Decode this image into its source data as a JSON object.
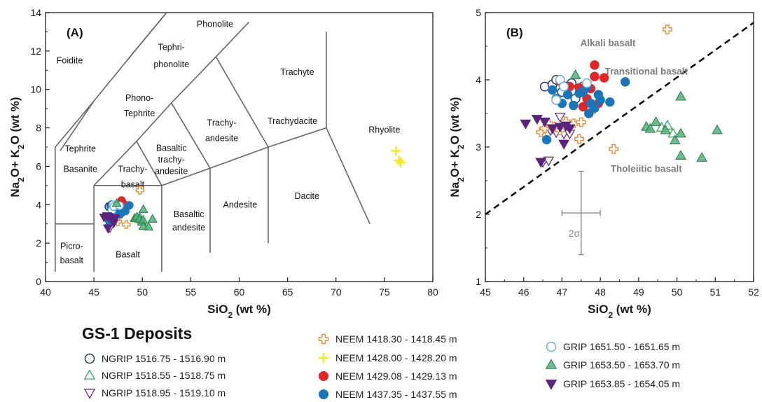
{
  "chart_data": [
    {
      "panel_label": "(A)",
      "type": "scatter",
      "xlabel": "SiO₂ (wt %)",
      "ylabel": "Na₂O+ K₂O (wt %)",
      "xlim": [
        40,
        80
      ],
      "ylim": [
        0,
        14
      ],
      "xticks": [
        40,
        45,
        50,
        55,
        60,
        65,
        70,
        75,
        80
      ],
      "yticks": [
        0,
        2,
        4,
        6,
        8,
        10,
        12,
        14
      ],
      "field_labels": [
        {
          "text": "Foidite",
          "x": 42.5,
          "y": 11.5
        },
        {
          "text": "Phonolite",
          "x": 57.5,
          "y": 13.4
        },
        {
          "text": "Tephri-",
          "x": 53.0,
          "y": 12.2
        },
        {
          "text": "phonolite",
          "x": 53.0,
          "y": 11.3
        },
        {
          "text": "Trachyte",
          "x": 66.0,
          "y": 10.9
        },
        {
          "text": "Phono-",
          "x": 49.7,
          "y": 9.55
        },
        {
          "text": "Tephrite",
          "x": 49.7,
          "y": 8.75
        },
        {
          "text": "Trachy-",
          "x": 58.2,
          "y": 8.25
        },
        {
          "text": "andesite",
          "x": 58.2,
          "y": 7.45
        },
        {
          "text": "Trachydacite",
          "x": 65.5,
          "y": 8.35
        },
        {
          "text": "Rhyolite",
          "x": 75.0,
          "y": 7.9
        },
        {
          "text": "Tephrite",
          "x": 43.6,
          "y": 6.9
        },
        {
          "text": "Basanite",
          "x": 43.6,
          "y": 5.85
        },
        {
          "text": "Basaltic",
          "x": 53.0,
          "y": 6.95
        },
        {
          "text": "trachy-",
          "x": 53.0,
          "y": 6.35
        },
        {
          "text": "andesite",
          "x": 53.0,
          "y": 5.75
        },
        {
          "text": "Trachy-",
          "x": 49.0,
          "y": 5.85
        },
        {
          "text": "basalt",
          "x": 49.0,
          "y": 5.05
        },
        {
          "text": "Andesite",
          "x": 60.1,
          "y": 4.0
        },
        {
          "text": "Dacite",
          "x": 67.0,
          "y": 4.45
        },
        {
          "text": "Basaltic",
          "x": 54.8,
          "y": 3.5
        },
        {
          "text": "andesite",
          "x": 54.8,
          "y": 2.8
        },
        {
          "text": "Picro-",
          "x": 42.7,
          "y": 1.85
        },
        {
          "text": "basalt",
          "x": 42.7,
          "y": 1.1
        },
        {
          "text": "Basalt",
          "x": 48.5,
          "y": 1.4
        }
      ],
      "tas_boundaries": [
        [
          [
            41,
            0.5
          ],
          [
            41,
            7
          ],
          [
            45,
            9.4
          ],
          [
            48.4,
            11.5
          ],
          [
            52.5,
            14
          ]
        ],
        [
          [
            41,
            3
          ],
          [
            45,
            3
          ]
        ],
        [
          [
            45,
            0.5
          ],
          [
            45,
            5
          ],
          [
            49.4,
            7.3
          ],
          [
            53,
            9.3
          ],
          [
            57.6,
            11.7
          ],
          [
            61,
            13.5
          ]
        ],
        [
          [
            45,
            5
          ],
          [
            52,
            5
          ],
          [
            52,
            0.5
          ]
        ],
        [
          [
            52,
            5
          ],
          [
            57,
            5.9
          ],
          [
            57,
            1.5
          ]
        ],
        [
          [
            57,
            5.9
          ],
          [
            63,
            7
          ],
          [
            63,
            2
          ]
        ],
        [
          [
            63,
            7
          ],
          [
            69,
            8
          ],
          [
            69,
            13
          ]
        ],
        [
          [
            69,
            8
          ],
          [
            73.5,
            3
          ]
        ],
        [
          [
            41.5,
            6.8
          ],
          [
            45,
            9.4
          ]
        ],
        [
          [
            49.4,
            7.3
          ],
          [
            52,
            5
          ]
        ],
        [
          [
            53,
            9.3
          ],
          [
            57,
            5.9
          ]
        ],
        [
          [
            57.6,
            11.7
          ],
          [
            63,
            7
          ]
        ],
        [
          [
            52.5,
            14
          ],
          [
            48.4,
            11.5
          ]
        ]
      ]
    },
    {
      "panel_label": "(B)",
      "type": "scatter",
      "xlabel": "SiO₂ (wt %)",
      "ylabel": "Na₂O+ K₂O (wt %)",
      "xlim": [
        45,
        52
      ],
      "ylim": [
        1,
        5
      ],
      "xticks": [
        45,
        46,
        47,
        48,
        49,
        50,
        51,
        52
      ],
      "yticks": [
        1,
        2,
        3,
        4,
        5
      ],
      "field_labels": [
        {
          "text": "Alkali basalt",
          "x": 48.2,
          "y": 4.55
        },
        {
          "text": "Transitional basalt",
          "x": 49.2,
          "y": 4.13
        },
        {
          "text": "Tholeiitic basalt",
          "x": 49.2,
          "y": 2.68
        }
      ],
      "divider": {
        "x": [
          45,
          52
        ],
        "y": [
          2.0,
          4.85
        ],
        "style": "dashed"
      },
      "error_bar": {
        "label": "2σ",
        "x": 47.5,
        "y": 2.02,
        "x_err": 0.5,
        "y_err": 0.62
      }
    }
  ],
  "series": [
    {
      "name": "NGRIP 1516.75 - 1516.90 m",
      "marker": "circle-open",
      "color": "#26336f",
      "points": [
        [
          46.55,
          3.9
        ],
        [
          46.75,
          3.93
        ],
        [
          46.85,
          4.0
        ],
        [
          47.1,
          3.9
        ],
        [
          47.25,
          3.95
        ],
        [
          47.0,
          3.82
        ],
        [
          47.55,
          3.9
        ],
        [
          47.35,
          3.72
        ]
      ]
    },
    {
      "name": "NGRIP 1518.55 - 1518.75 m",
      "marker": "triangle-open",
      "color": "#24a350",
      "points": [
        [
          49.6,
          3.29
        ],
        [
          49.75,
          3.32
        ],
        [
          49.9,
          3.2
        ]
      ]
    },
    {
      "name": "NGRIP 1518.95 - 1519.10 m",
      "marker": "triangle-down-open",
      "color": "#6b2b8c",
      "points": [
        [
          46.5,
          2.78
        ],
        [
          46.65,
          2.8
        ],
        [
          46.7,
          3.25
        ],
        [
          46.85,
          3.22
        ],
        [
          47.05,
          3.2
        ],
        [
          46.95,
          3.45
        ],
        [
          47.2,
          3.2
        ]
      ]
    },
    {
      "name": "NEEM 1418.30 - 1418.45 m",
      "marker": "plus-open",
      "color": "#ee8a2a",
      "points": [
        [
          49.75,
          4.75
        ],
        [
          48.35,
          2.97
        ],
        [
          47.45,
          3.12
        ],
        [
          46.45,
          3.22
        ],
        [
          46.55,
          3.28
        ],
        [
          46.65,
          3.35
        ],
        [
          46.8,
          3.3
        ],
        [
          46.95,
          3.25
        ],
        [
          47.1,
          3.38
        ],
        [
          47.3,
          3.35
        ],
        [
          47.5,
          3.37
        ],
        [
          47.75,
          3.52
        ]
      ]
    },
    {
      "name": "NEEM 1428.00 - 1428.20 m",
      "marker": "plus",
      "color": "#f3e81a",
      "points": [
        [
          76.2,
          6.8
        ],
        [
          76.5,
          6.3
        ],
        [
          76.7,
          6.2
        ]
      ]
    },
    {
      "name": "NEEM 1429.08 - 1429.13 m",
      "marker": "circle-filled",
      "color": "#e42526",
      "points": [
        [
          46.95,
          3.98
        ],
        [
          47.2,
          3.9
        ],
        [
          47.45,
          3.88
        ],
        [
          47.55,
          3.6
        ],
        [
          47.65,
          3.72
        ],
        [
          47.75,
          3.87
        ],
        [
          47.85,
          4.05
        ],
        [
          47.85,
          4.22
        ],
        [
          47.95,
          3.65
        ],
        [
          48.1,
          4.03
        ]
      ]
    },
    {
      "name": "NEEM 1437.35 - 1437.55 m",
      "marker": "circle-filled",
      "color": "#1a76bb",
      "points": [
        [
          46.6,
          3.11
        ],
        [
          46.75,
          3.85
        ],
        [
          46.85,
          3.72
        ],
        [
          47.0,
          3.65
        ],
        [
          47.15,
          3.78
        ],
        [
          47.3,
          3.62
        ],
        [
          47.45,
          3.8
        ],
        [
          47.55,
          3.82
        ],
        [
          47.65,
          3.9
        ],
        [
          47.7,
          3.5
        ],
        [
          47.75,
          3.65
        ],
        [
          47.85,
          3.58
        ],
        [
          47.95,
          3.78
        ],
        [
          48.0,
          3.7
        ],
        [
          48.25,
          3.67
        ],
        [
          48.65,
          3.97
        ]
      ]
    },
    {
      "name": "GRIP 1651.50 - 1651.65 m",
      "marker": "circle-open",
      "color": "#62b1e2",
      "points": [
        [
          46.85,
          3.7
        ],
        [
          46.95,
          4.0
        ],
        [
          47.05,
          3.9
        ],
        [
          47.65,
          3.95
        ]
      ]
    },
    {
      "name": "GRIP 1653.50 - 1653.70 m",
      "marker": "triangle-filled",
      "color": "#56b17a",
      "points": [
        [
          47.35,
          4.07
        ],
        [
          49.2,
          3.3
        ],
        [
          49.3,
          3.27
        ],
        [
          49.45,
          3.37
        ],
        [
          49.7,
          3.25
        ],
        [
          49.95,
          3.1
        ],
        [
          50.1,
          3.2
        ],
        [
          50.1,
          2.87
        ],
        [
          50.1,
          3.75
        ],
        [
          50.65,
          2.84
        ],
        [
          51.05,
          3.25
        ]
      ]
    },
    {
      "name": "GRIP 1653.85 - 1654.05 m",
      "marker": "triangle-down-filled",
      "color": "#59237f",
      "points": [
        [
          46.05,
          3.35
        ],
        [
          46.35,
          3.42
        ],
        [
          46.55,
          3.38
        ],
        [
          46.75,
          3.28
        ],
        [
          46.95,
          3.3
        ],
        [
          47.1,
          3.32
        ],
        [
          47.2,
          3.28
        ],
        [
          47.05,
          3.05
        ],
        [
          46.45,
          2.78
        ]
      ]
    }
  ],
  "legend": {
    "title": "GS-1 Deposits",
    "columns": [
      [
        0,
        1,
        2
      ],
      [
        3,
        4,
        5,
        6
      ],
      [
        7,
        8,
        9
      ]
    ]
  }
}
